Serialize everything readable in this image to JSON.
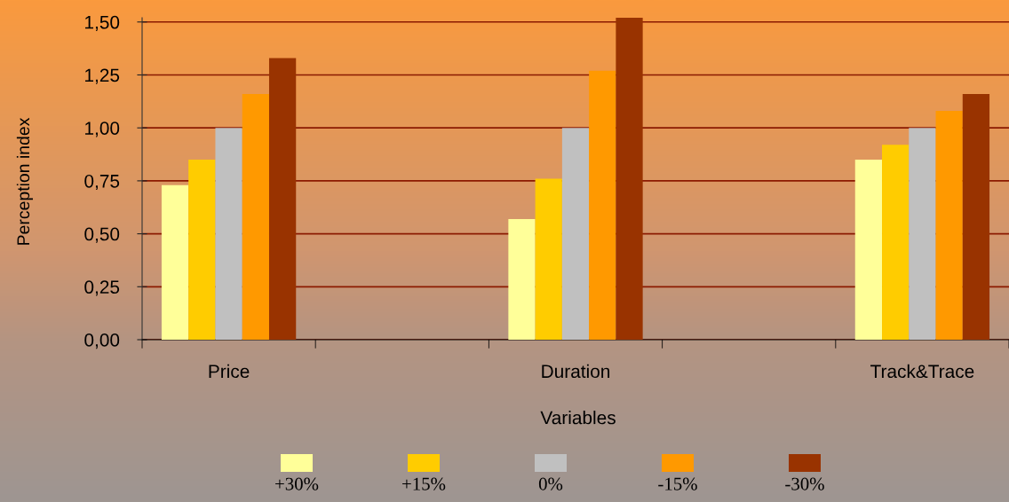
{
  "chart_data": {
    "type": "bar",
    "categories": [
      "Price",
      null,
      "Duration",
      null,
      "Track&Trace"
    ],
    "xlabel": "Variables",
    "ylabel": "Perception index",
    "ylim": [
      0,
      1.52
    ],
    "yticks": [
      {
        "value": 0,
        "label": "0,00"
      },
      {
        "value": 0.25,
        "label": "0,25"
      },
      {
        "value": 0.5,
        "label": "0,50"
      },
      {
        "value": 0.75,
        "label": "0,75"
      },
      {
        "value": 1.0,
        "label": "1,00"
      },
      {
        "value": 1.25,
        "label": "1,25"
      },
      {
        "value": 1.5,
        "label": "1,50"
      }
    ],
    "grid": "y",
    "legend": "bottom",
    "series": [
      {
        "name": "+30%",
        "color": "#ffff99",
        "values": [
          0.73,
          null,
          0.57,
          null,
          0.85
        ]
      },
      {
        "name": "+15%",
        "color": "#ffcc00",
        "values": [
          0.85,
          null,
          0.76,
          null,
          0.92
        ]
      },
      {
        "name": "0%",
        "color": "#c0c0c0",
        "values": [
          1.0,
          null,
          1.0,
          null,
          1.0
        ]
      },
      {
        "name": "-15%",
        "color": "#ff9900",
        "values": [
          1.16,
          null,
          1.27,
          null,
          1.08
        ]
      },
      {
        "name": "-30%",
        "color": "#993300",
        "values": [
          1.33,
          null,
          1.52,
          null,
          1.16
        ]
      }
    ]
  }
}
